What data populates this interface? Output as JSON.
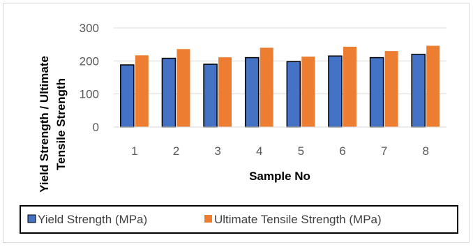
{
  "chart_data": {
    "type": "bar",
    "categories": [
      "1",
      "2",
      "3",
      "4",
      "5",
      "6",
      "7",
      "8"
    ],
    "series": [
      {
        "name": "Yield Strength (MPa)",
        "color": "#4472C4",
        "values": [
          188,
          208,
          190,
          210,
          198,
          215,
          210,
          220
        ]
      },
      {
        "name": "Ultimate Tensile Strength (MPa)",
        "color": "#ED7D31",
        "values": [
          217,
          236,
          211,
          240,
          213,
          243,
          230,
          246
        ]
      }
    ],
    "xlabel": "Sample No",
    "ylabel_lines": [
      "Yield Strength / Ultimate",
      "Tensile Strength"
    ],
    "ylim": [
      0,
      300
    ],
    "yticks": [
      "0",
      "100",
      "200",
      "300"
    ],
    "grid": true,
    "legend_position": "bottom"
  }
}
